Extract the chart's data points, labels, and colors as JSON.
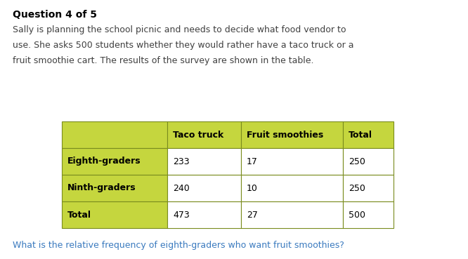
{
  "question_label": "Question 4 of 5",
  "paragraph_lines": [
    "Sally is planning the school picnic and needs to decide what food vendor to",
    "use. She asks 500 students whether they would rather have a taco truck or a",
    "fruit smoothie cart. The results of the survey are shown in the table."
  ],
  "footer_question": "What is the relative frequency of eighth-graders who want fruit smoothies?",
  "table": {
    "col_headers": [
      "",
      "Taco truck",
      "Fruit smoothies",
      "Total"
    ],
    "rows": [
      [
        "Eighth-graders",
        "233",
        "17",
        "250"
      ],
      [
        "Ninth-graders",
        "240",
        "10",
        "250"
      ],
      [
        "Total",
        "473",
        "27",
        "500"
      ]
    ],
    "header_bg": "#c5d63e",
    "row_label_bg": "#c5d63e",
    "cell_bg": "#ffffff",
    "border_color": "#7a8c1e",
    "header_text_color": "#000000",
    "cell_text_color": "#000000"
  },
  "bg_color": "#ffffff",
  "question_label_color": "#000000",
  "paragraph_color": "#404040",
  "footer_color": "#3a7abf",
  "fig_width": 6.66,
  "fig_height": 3.69,
  "dpi": 100
}
